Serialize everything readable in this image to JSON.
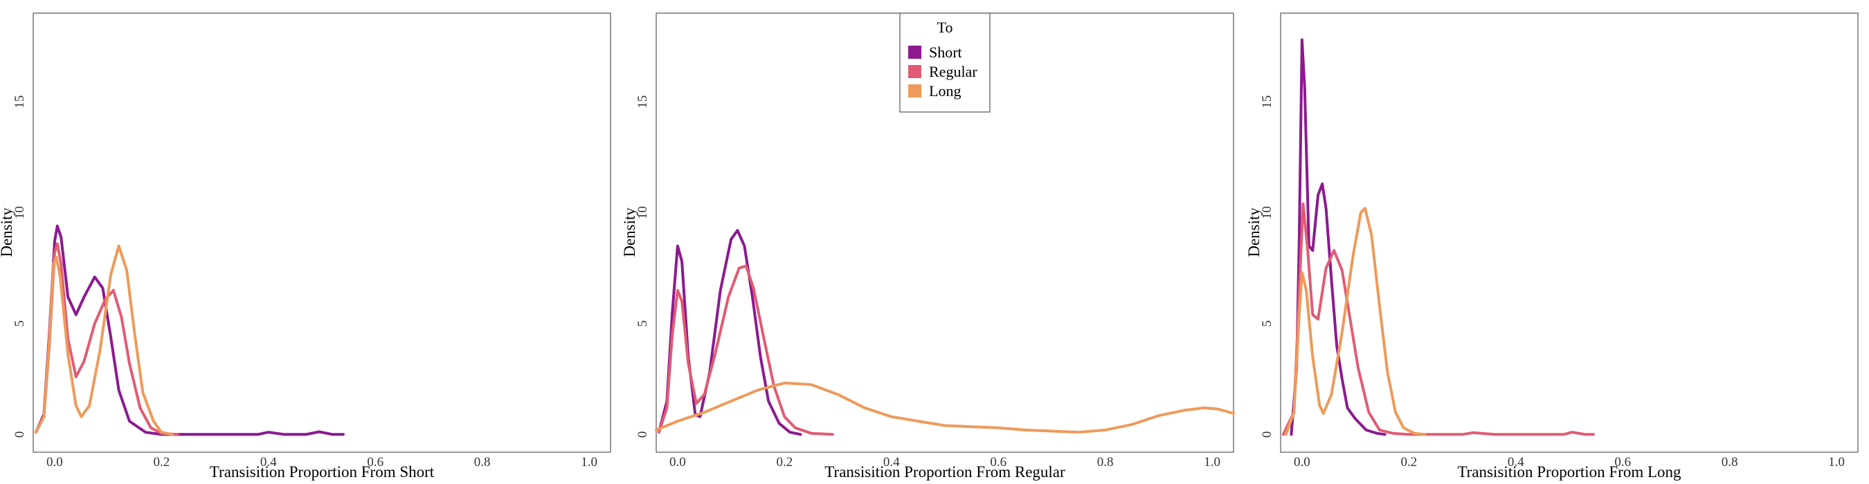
{
  "legend": {
    "title": "To",
    "entries": [
      {
        "name": "Short",
        "color": "#8B1A8F"
      },
      {
        "name": "Regular",
        "color": "#E05C73"
      },
      {
        "name": "Long",
        "color": "#EE9A5A"
      }
    ]
  },
  "chart_data": [
    {
      "type": "line",
      "title": "",
      "xlabel": "Transisition Proportion From Short",
      "ylabel": "Density",
      "xlim": [
        -0.04,
        1.04
      ],
      "ylim": [
        -0.8,
        19
      ],
      "xticks": [
        "0.0",
        "0.2",
        "0.4",
        "0.6",
        "0.8",
        "1.0"
      ],
      "yticks": [
        "0",
        "5",
        "10",
        "15"
      ],
      "grid": false,
      "series": [
        {
          "name": "Short",
          "color": "#8B1A8F",
          "points": [
            [
              -0.035,
              0.1
            ],
            [
              -0.02,
              0.9
            ],
            [
              -0.01,
              4.5
            ],
            [
              0.0,
              8.7
            ],
            [
              0.005,
              9.4
            ],
            [
              0.012,
              8.9
            ],
            [
              0.025,
              6.2
            ],
            [
              0.04,
              5.4
            ],
            [
              0.055,
              6.2
            ],
            [
              0.075,
              7.1
            ],
            [
              0.09,
              6.6
            ],
            [
              0.105,
              4.4
            ],
            [
              0.12,
              2.0
            ],
            [
              0.14,
              0.6
            ],
            [
              0.17,
              0.1
            ],
            [
              0.2,
              0.0
            ],
            [
              0.3,
              0.0
            ],
            [
              0.38,
              0.0
            ],
            [
              0.4,
              0.1
            ],
            [
              0.43,
              0.0
            ],
            [
              0.47,
              0.0
            ],
            [
              0.495,
              0.12
            ],
            [
              0.52,
              0.0
            ],
            [
              0.54,
              0.0
            ]
          ]
        },
        {
          "name": "Regular",
          "color": "#E05C73",
          "points": [
            [
              -0.035,
              0.1
            ],
            [
              -0.02,
              0.8
            ],
            [
              -0.01,
              4.0
            ],
            [
              0.0,
              8.2
            ],
            [
              0.005,
              8.6
            ],
            [
              0.012,
              7.7
            ],
            [
              0.025,
              4.3
            ],
            [
              0.04,
              2.6
            ],
            [
              0.055,
              3.3
            ],
            [
              0.075,
              5.0
            ],
            [
              0.095,
              6.1
            ],
            [
              0.11,
              6.5
            ],
            [
              0.125,
              5.3
            ],
            [
              0.14,
              3.2
            ],
            [
              0.16,
              1.2
            ],
            [
              0.18,
              0.3
            ],
            [
              0.2,
              0.05
            ],
            [
              0.23,
              0.0
            ]
          ]
        },
        {
          "name": "Long",
          "color": "#EE9A5A",
          "points": [
            [
              -0.035,
              0.1
            ],
            [
              -0.02,
              0.8
            ],
            [
              -0.01,
              4.2
            ],
            [
              -0.002,
              7.7
            ],
            [
              0.003,
              8.0
            ],
            [
              0.01,
              7.2
            ],
            [
              0.025,
              3.6
            ],
            [
              0.04,
              1.3
            ],
            [
              0.05,
              0.8
            ],
            [
              0.065,
              1.3
            ],
            [
              0.085,
              3.8
            ],
            [
              0.105,
              7.2
            ],
            [
              0.12,
              8.5
            ],
            [
              0.135,
              7.4
            ],
            [
              0.15,
              4.5
            ],
            [
              0.165,
              1.9
            ],
            [
              0.185,
              0.6
            ],
            [
              0.2,
              0.1
            ],
            [
              0.22,
              0.0
            ]
          ]
        }
      ]
    },
    {
      "type": "line",
      "title": "",
      "xlabel": "Transisition Proportion From Regular",
      "ylabel": "Density",
      "xlim": [
        -0.04,
        1.04
      ],
      "ylim": [
        -0.8,
        19
      ],
      "xticks": [
        "0.0",
        "0.2",
        "0.4",
        "0.6",
        "0.8",
        "1.0"
      ],
      "yticks": [
        "0",
        "5",
        "10",
        "15"
      ],
      "grid": false,
      "series": [
        {
          "name": "Short",
          "color": "#8B1A8F",
          "points": [
            [
              -0.035,
              0.1
            ],
            [
              -0.02,
              1.5
            ],
            [
              -0.01,
              5.5
            ],
            [
              0.0,
              8.5
            ],
            [
              0.008,
              7.8
            ],
            [
              0.02,
              3.5
            ],
            [
              0.033,
              0.9
            ],
            [
              0.042,
              0.8
            ],
            [
              0.06,
              2.8
            ],
            [
              0.08,
              6.5
            ],
            [
              0.1,
              8.8
            ],
            [
              0.112,
              9.2
            ],
            [
              0.125,
              8.5
            ],
            [
              0.14,
              6.2
            ],
            [
              0.155,
              3.5
            ],
            [
              0.17,
              1.5
            ],
            [
              0.19,
              0.5
            ],
            [
              0.21,
              0.1
            ],
            [
              0.23,
              0.0
            ]
          ]
        },
        {
          "name": "Regular",
          "color": "#E05C73",
          "points": [
            [
              -0.035,
              0.1
            ],
            [
              -0.02,
              1.2
            ],
            [
              -0.01,
              4.5
            ],
            [
              0.0,
              6.5
            ],
            [
              0.008,
              6.0
            ],
            [
              0.02,
              3.2
            ],
            [
              0.035,
              1.4
            ],
            [
              0.05,
              1.8
            ],
            [
              0.07,
              3.6
            ],
            [
              0.095,
              6.2
            ],
            [
              0.115,
              7.5
            ],
            [
              0.128,
              7.6
            ],
            [
              0.142,
              6.6
            ],
            [
              0.16,
              4.5
            ],
            [
              0.18,
              2.2
            ],
            [
              0.2,
              0.8
            ],
            [
              0.22,
              0.3
            ],
            [
              0.25,
              0.05
            ],
            [
              0.29,
              0.0
            ]
          ]
        },
        {
          "name": "Long",
          "color": "#EE9A5A",
          "points": [
            [
              -0.04,
              0.2
            ],
            [
              0.0,
              0.6
            ],
            [
              0.05,
              1.0
            ],
            [
              0.1,
              1.5
            ],
            [
              0.15,
              2.0
            ],
            [
              0.2,
              2.32
            ],
            [
              0.25,
              2.25
            ],
            [
              0.3,
              1.8
            ],
            [
              0.35,
              1.2
            ],
            [
              0.4,
              0.8
            ],
            [
              0.45,
              0.6
            ],
            [
              0.5,
              0.4
            ],
            [
              0.55,
              0.35
            ],
            [
              0.6,
              0.3
            ],
            [
              0.65,
              0.2
            ],
            [
              0.7,
              0.15
            ],
            [
              0.75,
              0.1
            ],
            [
              0.8,
              0.2
            ],
            [
              0.85,
              0.45
            ],
            [
              0.9,
              0.85
            ],
            [
              0.95,
              1.1
            ],
            [
              0.985,
              1.2
            ],
            [
              1.01,
              1.15
            ],
            [
              1.04,
              0.95
            ]
          ]
        }
      ]
    },
    {
      "type": "line",
      "title": "",
      "xlabel": "Transisition Proportion From Long",
      "ylabel": "Density",
      "xlim": [
        -0.04,
        1.04
      ],
      "ylim": [
        -0.8,
        19
      ],
      "xticks": [
        "0.0",
        "0.2",
        "0.4",
        "0.6",
        "0.8",
        "1.0"
      ],
      "yticks": [
        "0",
        "5",
        "10",
        "15"
      ],
      "grid": false,
      "series": [
        {
          "name": "Short",
          "color": "#8B1A8F",
          "points": [
            [
              -0.02,
              0.0
            ],
            [
              -0.01,
              3.0
            ],
            [
              -0.005,
              9.0
            ],
            [
              0.0,
              17.8
            ],
            [
              0.005,
              15.6
            ],
            [
              0.013,
              8.5
            ],
            [
              0.02,
              8.3
            ],
            [
              0.03,
              10.8
            ],
            [
              0.038,
              11.3
            ],
            [
              0.045,
              10.2
            ],
            [
              0.055,
              7.0
            ],
            [
              0.065,
              4.0
            ],
            [
              0.075,
              2.5
            ],
            [
              0.085,
              1.2
            ],
            [
              0.1,
              0.7
            ],
            [
              0.12,
              0.2
            ],
            [
              0.14,
              0.05
            ],
            [
              0.155,
              0.0
            ]
          ]
        },
        {
          "name": "Regular",
          "color": "#E05C73",
          "points": [
            [
              -0.035,
              0.0
            ],
            [
              -0.015,
              1.0
            ],
            [
              -0.005,
              6.5
            ],
            [
              0.002,
              10.4
            ],
            [
              0.01,
              8.5
            ],
            [
              0.02,
              5.4
            ],
            [
              0.03,
              5.2
            ],
            [
              0.045,
              7.5
            ],
            [
              0.06,
              8.3
            ],
            [
              0.075,
              7.4
            ],
            [
              0.09,
              5.2
            ],
            [
              0.105,
              3.0
            ],
            [
              0.125,
              1.0
            ],
            [
              0.145,
              0.2
            ],
            [
              0.17,
              0.05
            ],
            [
              0.2,
              0.0
            ],
            [
              0.3,
              0.0
            ],
            [
              0.32,
              0.08
            ],
            [
              0.36,
              0.0
            ],
            [
              0.45,
              0.0
            ],
            [
              0.49,
              0.0
            ],
            [
              0.505,
              0.1
            ],
            [
              0.53,
              0.0
            ],
            [
              0.545,
              0.0
            ]
          ]
        },
        {
          "name": "Long",
          "color": "#EE9A5A",
          "points": [
            [
              -0.03,
              0.0
            ],
            [
              -0.015,
              1.0
            ],
            [
              -0.005,
              5.5
            ],
            [
              0.0,
              7.3
            ],
            [
              0.008,
              6.5
            ],
            [
              0.02,
              3.5
            ],
            [
              0.033,
              1.3
            ],
            [
              0.04,
              0.95
            ],
            [
              0.055,
              1.8
            ],
            [
              0.075,
              4.6
            ],
            [
              0.095,
              8.0
            ],
            [
              0.11,
              10.0
            ],
            [
              0.118,
              10.2
            ],
            [
              0.13,
              9.0
            ],
            [
              0.145,
              5.8
            ],
            [
              0.16,
              2.8
            ],
            [
              0.175,
              1.0
            ],
            [
              0.19,
              0.3
            ],
            [
              0.21,
              0.05
            ],
            [
              0.23,
              0.0
            ]
          ]
        }
      ]
    }
  ]
}
